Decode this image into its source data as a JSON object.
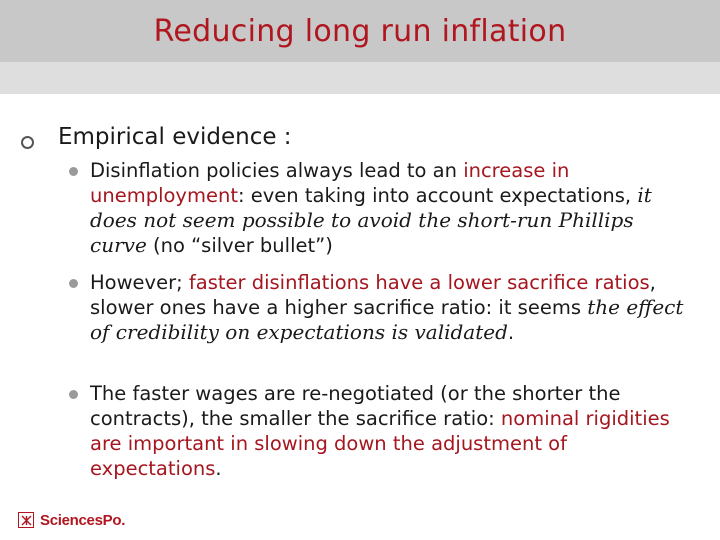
{
  "slide": {
    "title": "Reducing long run inflation",
    "heading": "Empirical evidence :",
    "bullets": [
      {
        "a": "Disinflation policies always lead to an ",
        "b": "increase in unemployment",
        "c": ": even taking into account expectations, ",
        "d": "it does not seem possible to avoid the short-run Phillips curve",
        "e": " (no “silver bullet”)"
      },
      {
        "a": "However; ",
        "b": "faster disinflations have a lower sacrifice ratios",
        "c": ", slower ones have a higher sacrifice ratio: it seems ",
        "d": "the effect of credibility on expectations is validated",
        "e": "."
      },
      {
        "a": "The faster wages are re-negotiated (or the shorter the contracts), the smaller the sacrifice ratio: ",
        "b": "nominal rigidities are important in slowing down the adjustment of expectations",
        "c": "."
      }
    ],
    "logo_text": "SciencesPo.",
    "logo_glyph": "✕"
  },
  "colors": {
    "accent": "#b0161f",
    "title_bar": "#c8c8c8",
    "sub_bar": "#dedede"
  }
}
